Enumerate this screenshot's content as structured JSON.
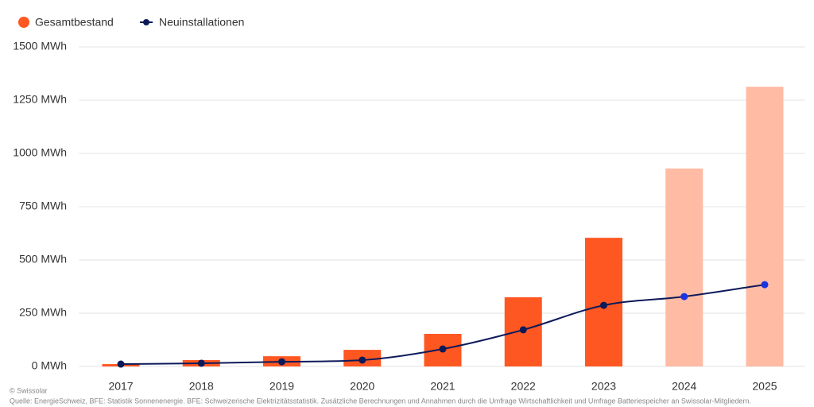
{
  "chart_data": {
    "type": "bar-line",
    "categories": [
      "2017",
      "2018",
      "2019",
      "2020",
      "2021",
      "2022",
      "2023",
      "2024",
      "2025"
    ],
    "series": [
      {
        "name": "Gesamtbestand",
        "type": "bar",
        "color": "#ff5722",
        "colors": [
          "#ff5722",
          "#ff5722",
          "#ff5722",
          "#ff5722",
          "#ff5722",
          "#ff5722",
          "#ff5722",
          "#ffbba3",
          "#ffbba3"
        ],
        "values": [
          11,
          30,
          48,
          78,
          153,
          325,
          604,
          929,
          1313
        ]
      },
      {
        "name": "Neuinstallationen",
        "type": "line",
        "color": "#0d1a5a",
        "colors": [
          "#0d1a5a",
          "#0d1a5a",
          "#0d1a5a",
          "#0d1a5a",
          "#0d1a5a",
          "#0d1a5a",
          "#0d1a5a",
          "#1a35e0",
          "#1a35e0"
        ],
        "values": [
          11,
          15,
          22,
          30,
          82,
          172,
          287,
          328,
          384
        ]
      }
    ],
    "ylim": [
      0,
      1500
    ],
    "yticks": [
      {
        "value": 0,
        "label": "0 MWh"
      },
      {
        "value": 250,
        "label": "250 MWh"
      },
      {
        "value": 500,
        "label": "500 MWh"
      },
      {
        "value": 750,
        "label": "750 MWh"
      },
      {
        "value": 1000,
        "label": "1000 MWh"
      },
      {
        "value": 1250,
        "label": "1250 MWh"
      },
      {
        "value": 1500,
        "label": "1500 MWh"
      }
    ],
    "grid": true,
    "credit": "© Swissolar",
    "source": "Quelle: EnergieSchweiz, BFE: Statistik Sonnenenergie. BFE: Schweizerische Elektrizitätsstatistik. Zusätzliche Berechnungen und Annahmen durch die Umfrage Wirtschaftlichkeit und Umfrage Batteriespeicher an Swissolar-Mitgliedern."
  }
}
